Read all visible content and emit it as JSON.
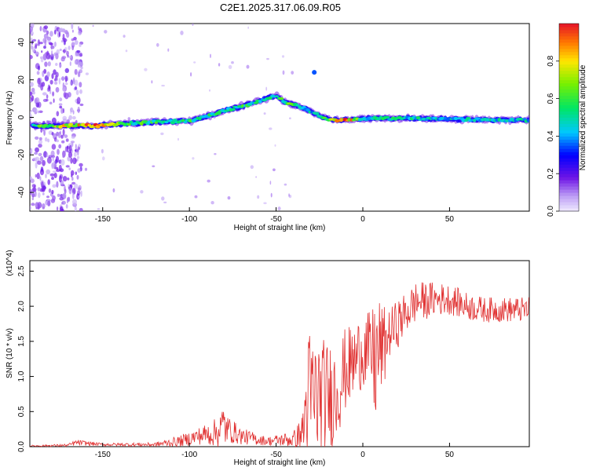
{
  "title": "C2E1.2025.317.06.09.R05",
  "colors": {
    "snr_line": "#e03030",
    "axis": "#000000",
    "background_spectrogram": "#ffffff"
  },
  "chart_data": [
    {
      "type": "heatmap",
      "title": "C2E1.2025.317.06.09.R05",
      "xlabel": "Height of straight line (km)",
      "ylabel": "Frequency (Hz)",
      "xlim": [
        -192,
        96
      ],
      "ylim": [
        -50,
        50
      ],
      "xticks": [
        -150,
        -100,
        -50,
        0,
        50
      ],
      "yticks": [
        -40,
        -20,
        0,
        20,
        40
      ],
      "colorbar": {
        "label": "Normalized spectral amplitude",
        "range": [
          0,
          1
        ],
        "ticks": [
          "0.0",
          "0.2",
          "0.4",
          "0.6",
          "0.8"
        ]
      },
      "ridge": {
        "x": [
          -192,
          -170,
          -155,
          -140,
          -120,
          -100,
          -90,
          -80,
          -70,
          -60,
          -50,
          -45,
          -40,
          -35,
          -30,
          -25,
          -20,
          -10,
          0,
          20,
          50,
          96
        ],
        "y": [
          -4.5,
          -4.5,
          -4.5,
          -3.5,
          -2.5,
          -2.0,
          0.5,
          3.5,
          6.0,
          8.5,
          11.5,
          8.0,
          7.0,
          5.0,
          3.0,
          1.0,
          -1.0,
          -1.5,
          -0.5,
          -0.5,
          -1.0,
          -1.5
        ],
        "amplitude": [
          0.55,
          0.75,
          0.95,
          0.6,
          0.55,
          0.55,
          0.5,
          0.55,
          0.55,
          0.5,
          0.55,
          0.6,
          0.6,
          0.5,
          0.45,
          0.5,
          0.6,
          0.95,
          0.5,
          0.5,
          0.45,
          0.45
        ]
      }
    },
    {
      "type": "line",
      "xlabel": "Height of straight line (km)",
      "ylabel": "SNR (10 * v/v)",
      "y_multiplier": "(x10^4)",
      "xlim": [
        -192,
        96
      ],
      "ylim": [
        0.0,
        2.65
      ],
      "xticks": [
        -150,
        -100,
        -50,
        0,
        50
      ],
      "yticks": [
        "0.0",
        "0.5",
        "1.0",
        "1.5",
        "2.0",
        "2.5"
      ],
      "envelope": {
        "x": [
          -192,
          -170,
          -165,
          -150,
          -120,
          -105,
          -95,
          -85,
          -80,
          -78,
          -70,
          -60,
          -55,
          -45,
          -40,
          -35,
          -32,
          -30,
          -25,
          -20,
          -15,
          -10,
          -5,
          0,
          5,
          8,
          10,
          12,
          15,
          20,
          25,
          30,
          40,
          50,
          60,
          70,
          80,
          90,
          96
        ],
        "base": [
          0.01,
          0.02,
          0.06,
          0.03,
          0.03,
          0.08,
          0.15,
          0.2,
          0.3,
          0.25,
          0.15,
          0.1,
          0.08,
          0.1,
          0.1,
          0.2,
          0.6,
          0.7,
          0.7,
          0.7,
          0.8,
          1.1,
          1.2,
          1.4,
          1.3,
          1.2,
          1.4,
          1.4,
          1.6,
          1.75,
          1.9,
          2.05,
          2.1,
          2.1,
          2.0,
          1.95,
          1.95,
          1.95,
          1.95
        ],
        "amp": [
          0.01,
          0.02,
          0.04,
          0.02,
          0.03,
          0.08,
          0.12,
          0.2,
          0.35,
          0.2,
          0.12,
          0.08,
          0.06,
          0.1,
          0.12,
          0.25,
          1.1,
          1.0,
          0.9,
          0.8,
          0.7,
          0.6,
          0.55,
          0.55,
          0.6,
          1.1,
          0.7,
          0.6,
          0.35,
          0.35,
          0.3,
          0.3,
          0.25,
          0.22,
          0.2,
          0.18,
          0.18,
          0.18,
          0.18
        ]
      }
    }
  ]
}
